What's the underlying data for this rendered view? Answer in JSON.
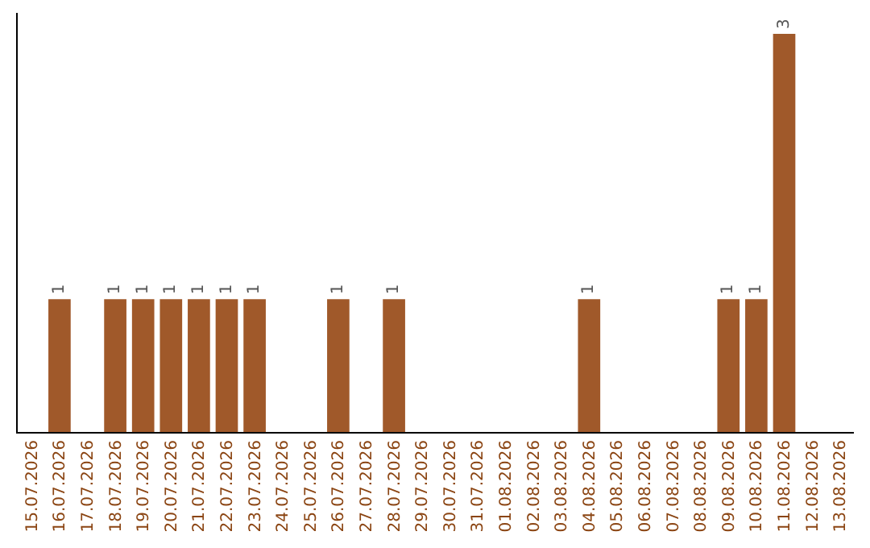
{
  "chart_data": {
    "type": "bar",
    "categories": [
      "15.07.2026",
      "16.07.2026",
      "17.07.2026",
      "18.07.2026",
      "19.07.2026",
      "20.07.2026",
      "21.07.2026",
      "22.07.2026",
      "23.07.2026",
      "24.07.2026",
      "25.07.2026",
      "26.07.2026",
      "27.07.2026",
      "28.07.2026",
      "29.07.2026",
      "30.07.2026",
      "31.07.2026",
      "01.08.2026",
      "02.08.2026",
      "03.08.2026",
      "04.08.2026",
      "05.08.2026",
      "06.08.2026",
      "07.08.2026",
      "08.08.2026",
      "09.08.2026",
      "10.08.2026",
      "11.08.2026",
      "12.08.2026",
      "13.08.2026"
    ],
    "values": [
      0,
      1,
      0,
      1,
      1,
      1,
      1,
      1,
      1,
      0,
      0,
      1,
      0,
      1,
      0,
      0,
      0,
      0,
      0,
      0,
      1,
      0,
      0,
      0,
      0,
      1,
      1,
      3,
      0,
      0
    ],
    "value_labels": [
      null,
      "1",
      null,
      "1",
      "1",
      "1",
      "1",
      "1",
      "1",
      null,
      null,
      "1",
      null,
      "1",
      null,
      null,
      null,
      null,
      null,
      null,
      "1",
      null,
      null,
      null,
      null,
      "1",
      "1",
      "3",
      null,
      null
    ],
    "color": "#a0592a",
    "tick_labels": "x",
    "grid": false,
    "legend": false
  }
}
